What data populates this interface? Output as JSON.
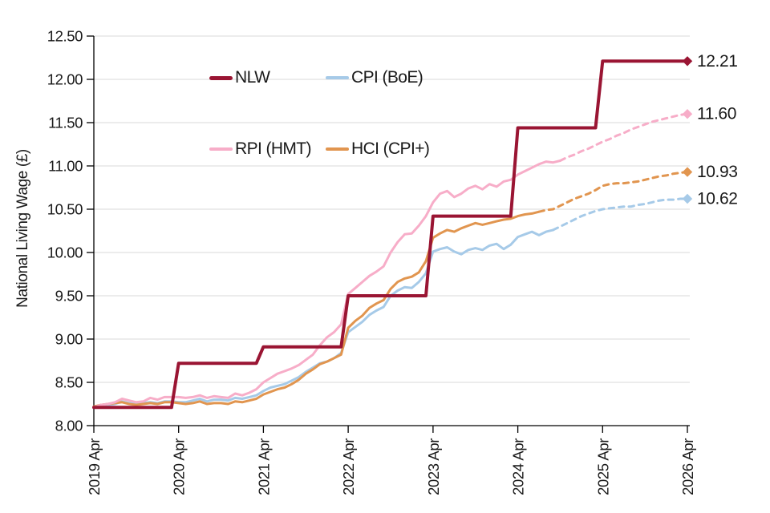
{
  "chart_data": {
    "type": "line",
    "title": "",
    "ylabel": "National Living Wage (£)",
    "xlabel": "",
    "ylim": [
      8.0,
      12.5
    ],
    "ytick_step": 0.5,
    "grid": "horizontal",
    "x_start_month": "2019 Apr",
    "x_end_month": "2026 Apr",
    "x_frequency": "monthly",
    "y_tick_labels": [
      "8.00",
      "8.50",
      "9.00",
      "9.50",
      "10.00",
      "10.50",
      "11.00",
      "11.50",
      "12.00",
      "12.50"
    ],
    "x_tick_labels": [
      "2019 Apr",
      "2020 Apr",
      "2021 Apr",
      "2022 Apr",
      "2023 Apr",
      "2024 Apr",
      "2025 Apr",
      "2026 Apr"
    ],
    "colors": {
      "grid": "#d9d9d9",
      "axis": "#000000",
      "text": "#1a1a1a"
    },
    "legend": {
      "position": "top-inside",
      "items": [
        {
          "label": "NLW",
          "color": "#9A1533",
          "weight": 5
        },
        {
          "label": "CPI (BoE)",
          "color": "#A6CAE8",
          "weight": 3.5
        },
        {
          "label": "RPI (HMT)",
          "color": "#F7ADC8",
          "weight": 3.5
        },
        {
          "label": "HCI (CPI+)",
          "color": "#E1954F",
          "weight": 3.5
        }
      ]
    },
    "series": [
      {
        "name": "CPI (BoE)",
        "color": "#A6CAE8",
        "width": 3,
        "style": "solid_then_dashed",
        "dash_from_index": 65,
        "end_label": "10.62",
        "values": [
          8.21,
          8.23,
          8.24,
          8.25,
          8.28,
          8.26,
          8.25,
          8.26,
          8.27,
          8.26,
          8.28,
          8.28,
          8.27,
          8.27,
          8.29,
          8.31,
          8.28,
          8.3,
          8.3,
          8.29,
          8.32,
          8.31,
          8.33,
          8.35,
          8.4,
          8.44,
          8.46,
          8.48,
          8.52,
          8.56,
          8.62,
          8.67,
          8.72,
          8.74,
          8.78,
          8.84,
          9.08,
          9.14,
          9.2,
          9.28,
          9.33,
          9.37,
          9.5,
          9.56,
          9.6,
          9.59,
          9.66,
          9.76,
          10.01,
          10.04,
          10.06,
          10.01,
          9.98,
          10.03,
          10.05,
          10.03,
          10.08,
          10.1,
          10.04,
          10.09,
          10.18,
          10.21,
          10.24,
          10.2,
          10.24,
          10.26,
          10.3,
          10.34,
          10.38,
          10.42,
          10.45,
          10.48,
          10.5,
          10.51,
          10.52,
          10.53,
          10.53,
          10.55,
          10.56,
          10.58,
          10.6,
          10.61,
          10.61,
          10.62,
          10.62
        ]
      },
      {
        "name": "HCI (CPI+)",
        "color": "#E1954F",
        "width": 3,
        "style": "solid_then_dashed",
        "dash_from_index": 63,
        "end_label": "10.93",
        "values": [
          8.22,
          8.24,
          8.25,
          8.26,
          8.27,
          8.25,
          8.24,
          8.25,
          8.26,
          8.25,
          8.27,
          8.27,
          8.26,
          8.25,
          8.26,
          8.28,
          8.25,
          8.26,
          8.26,
          8.25,
          8.28,
          8.27,
          8.29,
          8.31,
          8.36,
          8.39,
          8.42,
          8.44,
          8.48,
          8.53,
          8.6,
          8.65,
          8.71,
          8.74,
          8.78,
          8.82,
          9.13,
          9.21,
          9.27,
          9.36,
          9.41,
          9.45,
          9.58,
          9.66,
          9.7,
          9.72,
          9.77,
          9.9,
          10.17,
          10.22,
          10.26,
          10.24,
          10.28,
          10.31,
          10.34,
          10.32,
          10.34,
          10.36,
          10.38,
          10.39,
          10.42,
          10.44,
          10.45,
          10.47,
          10.49,
          10.5,
          10.54,
          10.58,
          10.62,
          10.65,
          10.68,
          10.72,
          10.77,
          10.79,
          10.8,
          10.8,
          10.81,
          10.82,
          10.84,
          10.86,
          10.88,
          10.89,
          10.91,
          10.92,
          10.93
        ]
      },
      {
        "name": "RPI (HMT)",
        "color": "#F7ADC8",
        "width": 3,
        "style": "solid_then_dashed",
        "dash_from_index": 66,
        "end_label": "11.60",
        "values": [
          8.21,
          8.24,
          8.25,
          8.27,
          8.31,
          8.29,
          8.27,
          8.28,
          8.32,
          8.3,
          8.33,
          8.33,
          8.33,
          8.32,
          8.33,
          8.35,
          8.32,
          8.34,
          8.33,
          8.32,
          8.37,
          8.35,
          8.38,
          8.42,
          8.5,
          8.55,
          8.6,
          8.63,
          8.66,
          8.7,
          8.76,
          8.82,
          8.93,
          9.02,
          9.08,
          9.17,
          9.52,
          9.59,
          9.66,
          9.73,
          9.78,
          9.84,
          10.0,
          10.12,
          10.21,
          10.22,
          10.31,
          10.42,
          10.58,
          10.68,
          10.71,
          10.64,
          10.68,
          10.74,
          10.77,
          10.73,
          10.79,
          10.76,
          10.82,
          10.84,
          10.9,
          10.94,
          10.98,
          11.02,
          11.05,
          11.04,
          11.06,
          11.1,
          11.13,
          11.17,
          11.2,
          11.24,
          11.28,
          11.31,
          11.35,
          11.38,
          11.42,
          11.45,
          11.48,
          11.51,
          11.53,
          11.55,
          11.57,
          11.59,
          11.6
        ]
      },
      {
        "name": "NLW",
        "color": "#9A1533",
        "width": 4,
        "style": "solid",
        "end_label": "12.21",
        "values": [
          8.21,
          8.21,
          8.21,
          8.21,
          8.21,
          8.21,
          8.21,
          8.21,
          8.21,
          8.21,
          8.21,
          8.21,
          8.72,
          8.72,
          8.72,
          8.72,
          8.72,
          8.72,
          8.72,
          8.72,
          8.72,
          8.72,
          8.72,
          8.72,
          8.91,
          8.91,
          8.91,
          8.91,
          8.91,
          8.91,
          8.91,
          8.91,
          8.91,
          8.91,
          8.91,
          8.91,
          9.5,
          9.5,
          9.5,
          9.5,
          9.5,
          9.5,
          9.5,
          9.5,
          9.5,
          9.5,
          9.5,
          9.5,
          10.42,
          10.42,
          10.42,
          10.42,
          10.42,
          10.42,
          10.42,
          10.42,
          10.42,
          10.42,
          10.42,
          10.42,
          11.44,
          11.44,
          11.44,
          11.44,
          11.44,
          11.44,
          11.44,
          11.44,
          11.44,
          11.44,
          11.44,
          11.44,
          12.21,
          12.21,
          12.21,
          12.21,
          12.21,
          12.21,
          12.21,
          12.21,
          12.21,
          12.21,
          12.21,
          12.21,
          12.21
        ]
      }
    ],
    "end_labels": [
      "12.21",
      "11.60",
      "10.93",
      "10.62"
    ]
  }
}
